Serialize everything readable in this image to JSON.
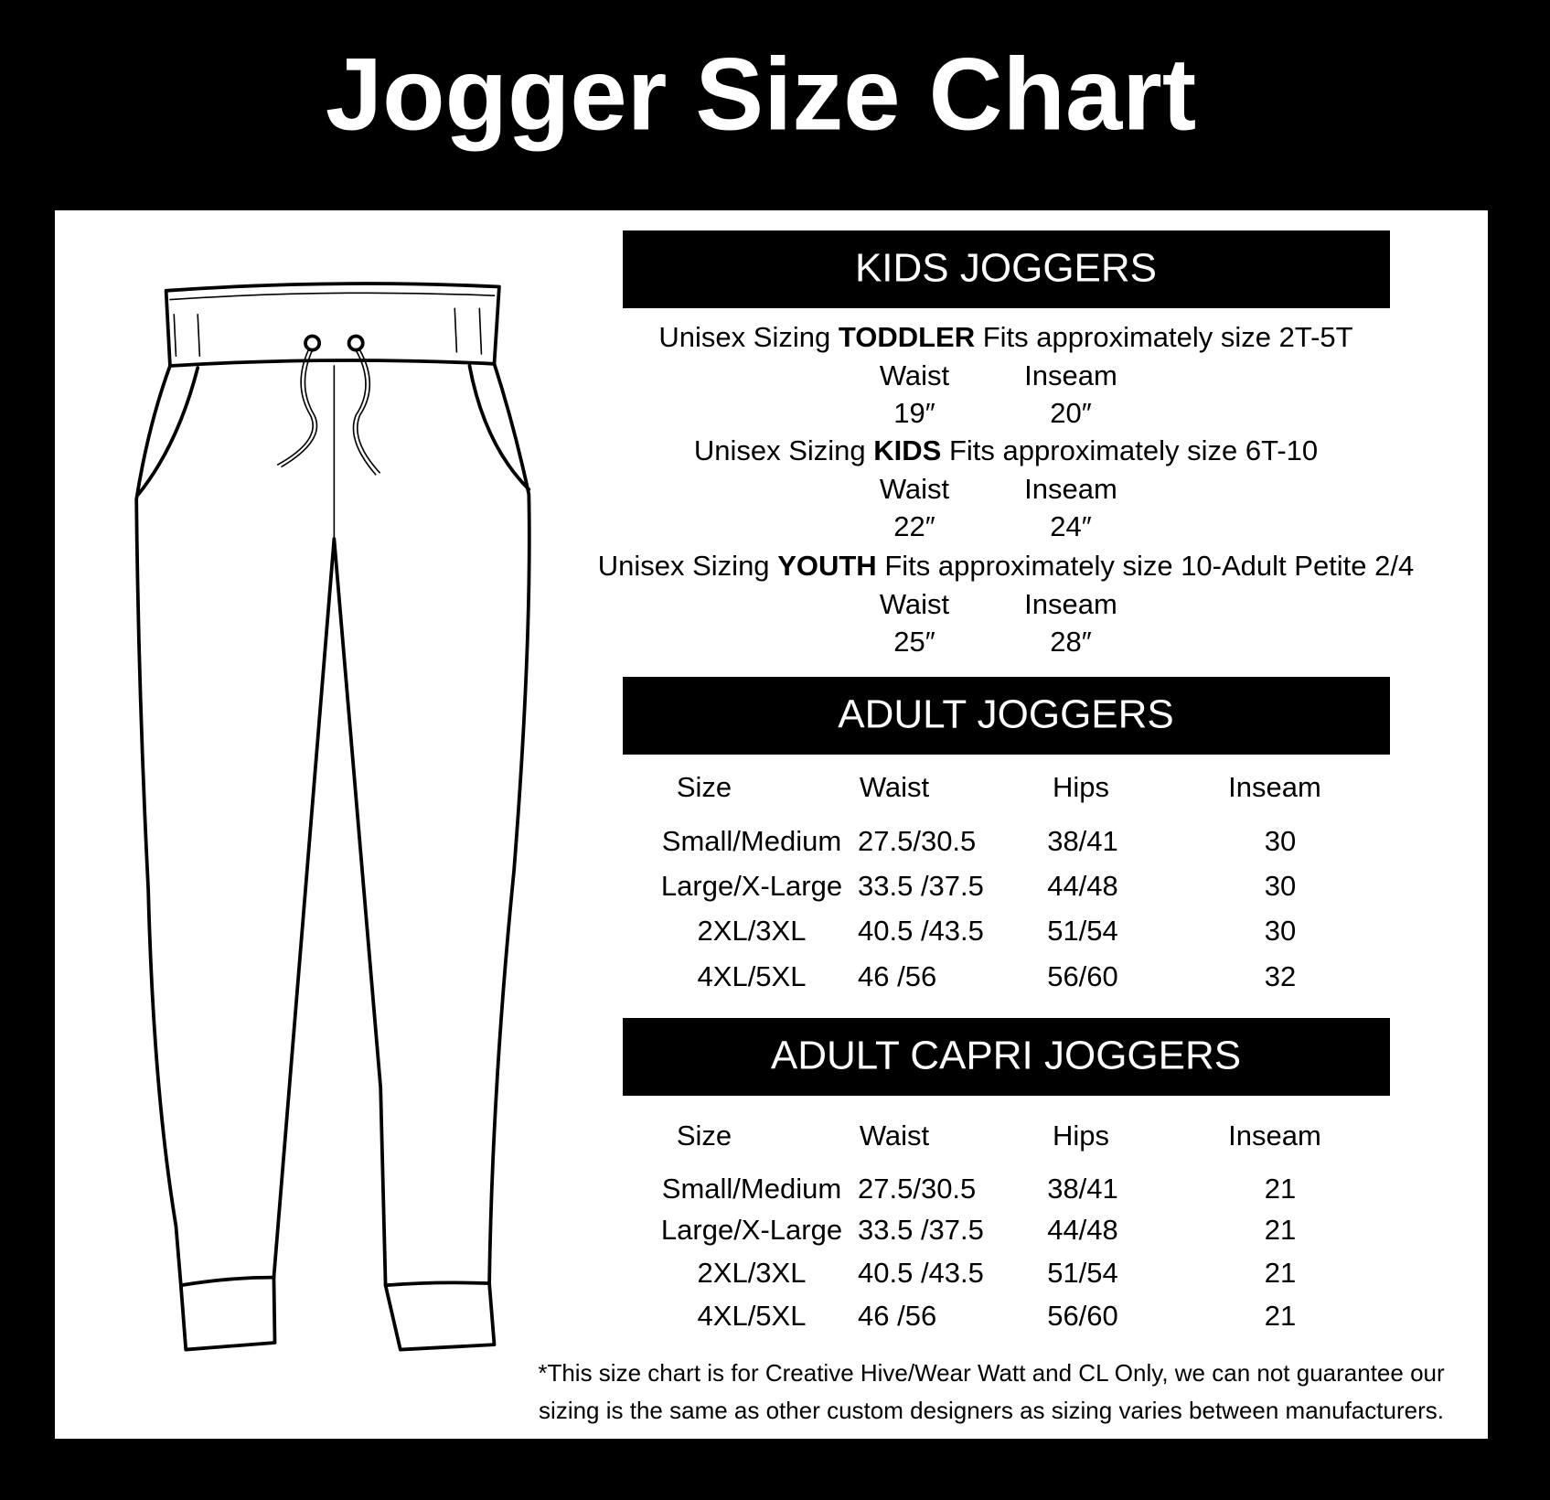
{
  "title": "Jogger Size Chart",
  "kids": {
    "heading": "KIDS JOGGERS",
    "groups": [
      {
        "prefix": "Unisex Sizing",
        "emphasis": "TODDLER",
        "suffix": "Fits approximately size 2T-5T",
        "labels": [
          "Waist",
          "Inseam"
        ],
        "values": [
          "19″",
          "20″"
        ]
      },
      {
        "prefix": "Unisex Sizing",
        "emphasis": "KIDS",
        "suffix": "Fits approximately size 6T-10",
        "labels": [
          "Waist",
          "Inseam"
        ],
        "values": [
          "22″",
          "24″"
        ]
      },
      {
        "prefix": "Unisex Sizing",
        "emphasis": "YOUTH",
        "suffix": "Fits approximately size 10-Adult Petite 2/4",
        "labels": [
          "Waist",
          "Inseam"
        ],
        "values": [
          "25″",
          "28″"
        ]
      }
    ]
  },
  "adult": {
    "heading": "ADULT JOGGERS",
    "columns": [
      "Size",
      "Waist",
      "Hips",
      "Inseam"
    ],
    "rows": [
      [
        "Small/Medium",
        "27.5/30.5",
        "38/41",
        "30"
      ],
      [
        "Large/X-Large",
        "33.5 /37.5",
        "44/48",
        "30"
      ],
      [
        "2XL/3XL",
        "40.5 /43.5",
        "51/54",
        "30"
      ],
      [
        "4XL/5XL",
        "46 /56",
        "56/60",
        "32"
      ]
    ]
  },
  "capri": {
    "heading": "ADULT CAPRI JOGGERS",
    "columns": [
      "Size",
      "Waist",
      "Hips",
      "Inseam"
    ],
    "rows": [
      [
        "Small/Medium",
        "27.5/30.5",
        "38/41",
        "21"
      ],
      [
        "Large/X-Large",
        "33.5 /37.5",
        "44/48",
        "21"
      ],
      [
        "2XL/3XL",
        "40.5 /43.5",
        "51/54",
        "21"
      ],
      [
        "4XL/5XL",
        "46 /56",
        "56/60",
        "21"
      ]
    ]
  },
  "footnote": [
    "*This size chart is for Creative Hive/Wear Watt and CL Only, we can not guarantee our",
    "sizing is the same as other custom designers as sizing varies  between manufacturers."
  ]
}
